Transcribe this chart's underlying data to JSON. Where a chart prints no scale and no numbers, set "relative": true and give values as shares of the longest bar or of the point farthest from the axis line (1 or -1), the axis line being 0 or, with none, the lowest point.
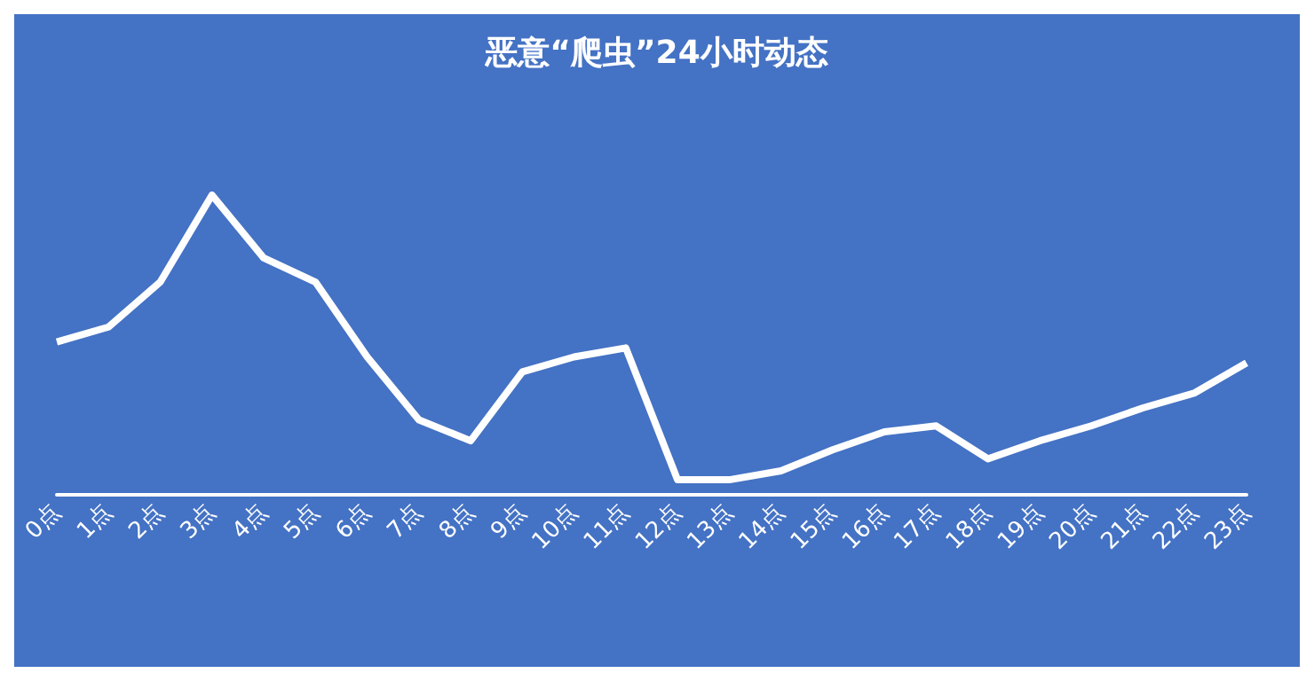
{
  "chart_data": {
    "type": "line",
    "title": "恶意“爬虫”24小时动态",
    "relative": true,
    "marker": "none",
    "grid": false,
    "categories": [
      "0点",
      "1点",
      "2点",
      "3点",
      "4点",
      "5点",
      "6点",
      "7点",
      "8点",
      "9点",
      "10点",
      "11点",
      "12点",
      "13点",
      "14点",
      "15点",
      "16点",
      "17点",
      "18点",
      "19点",
      "20点",
      "21点",
      "22点",
      "23点"
    ],
    "series": [
      {
        "color": "#ffffff",
        "values": [
          0.51,
          0.56,
          0.71,
          1,
          0.79,
          0.71,
          0.46,
          0.25,
          0.18,
          0.41,
          0.46,
          0.49,
          0.05,
          0.05,
          0.08,
          0.15,
          0.21,
          0.23,
          0.12,
          0.18,
          0.23,
          0.29,
          0.34,
          0.44
        ]
      }
    ]
  }
}
